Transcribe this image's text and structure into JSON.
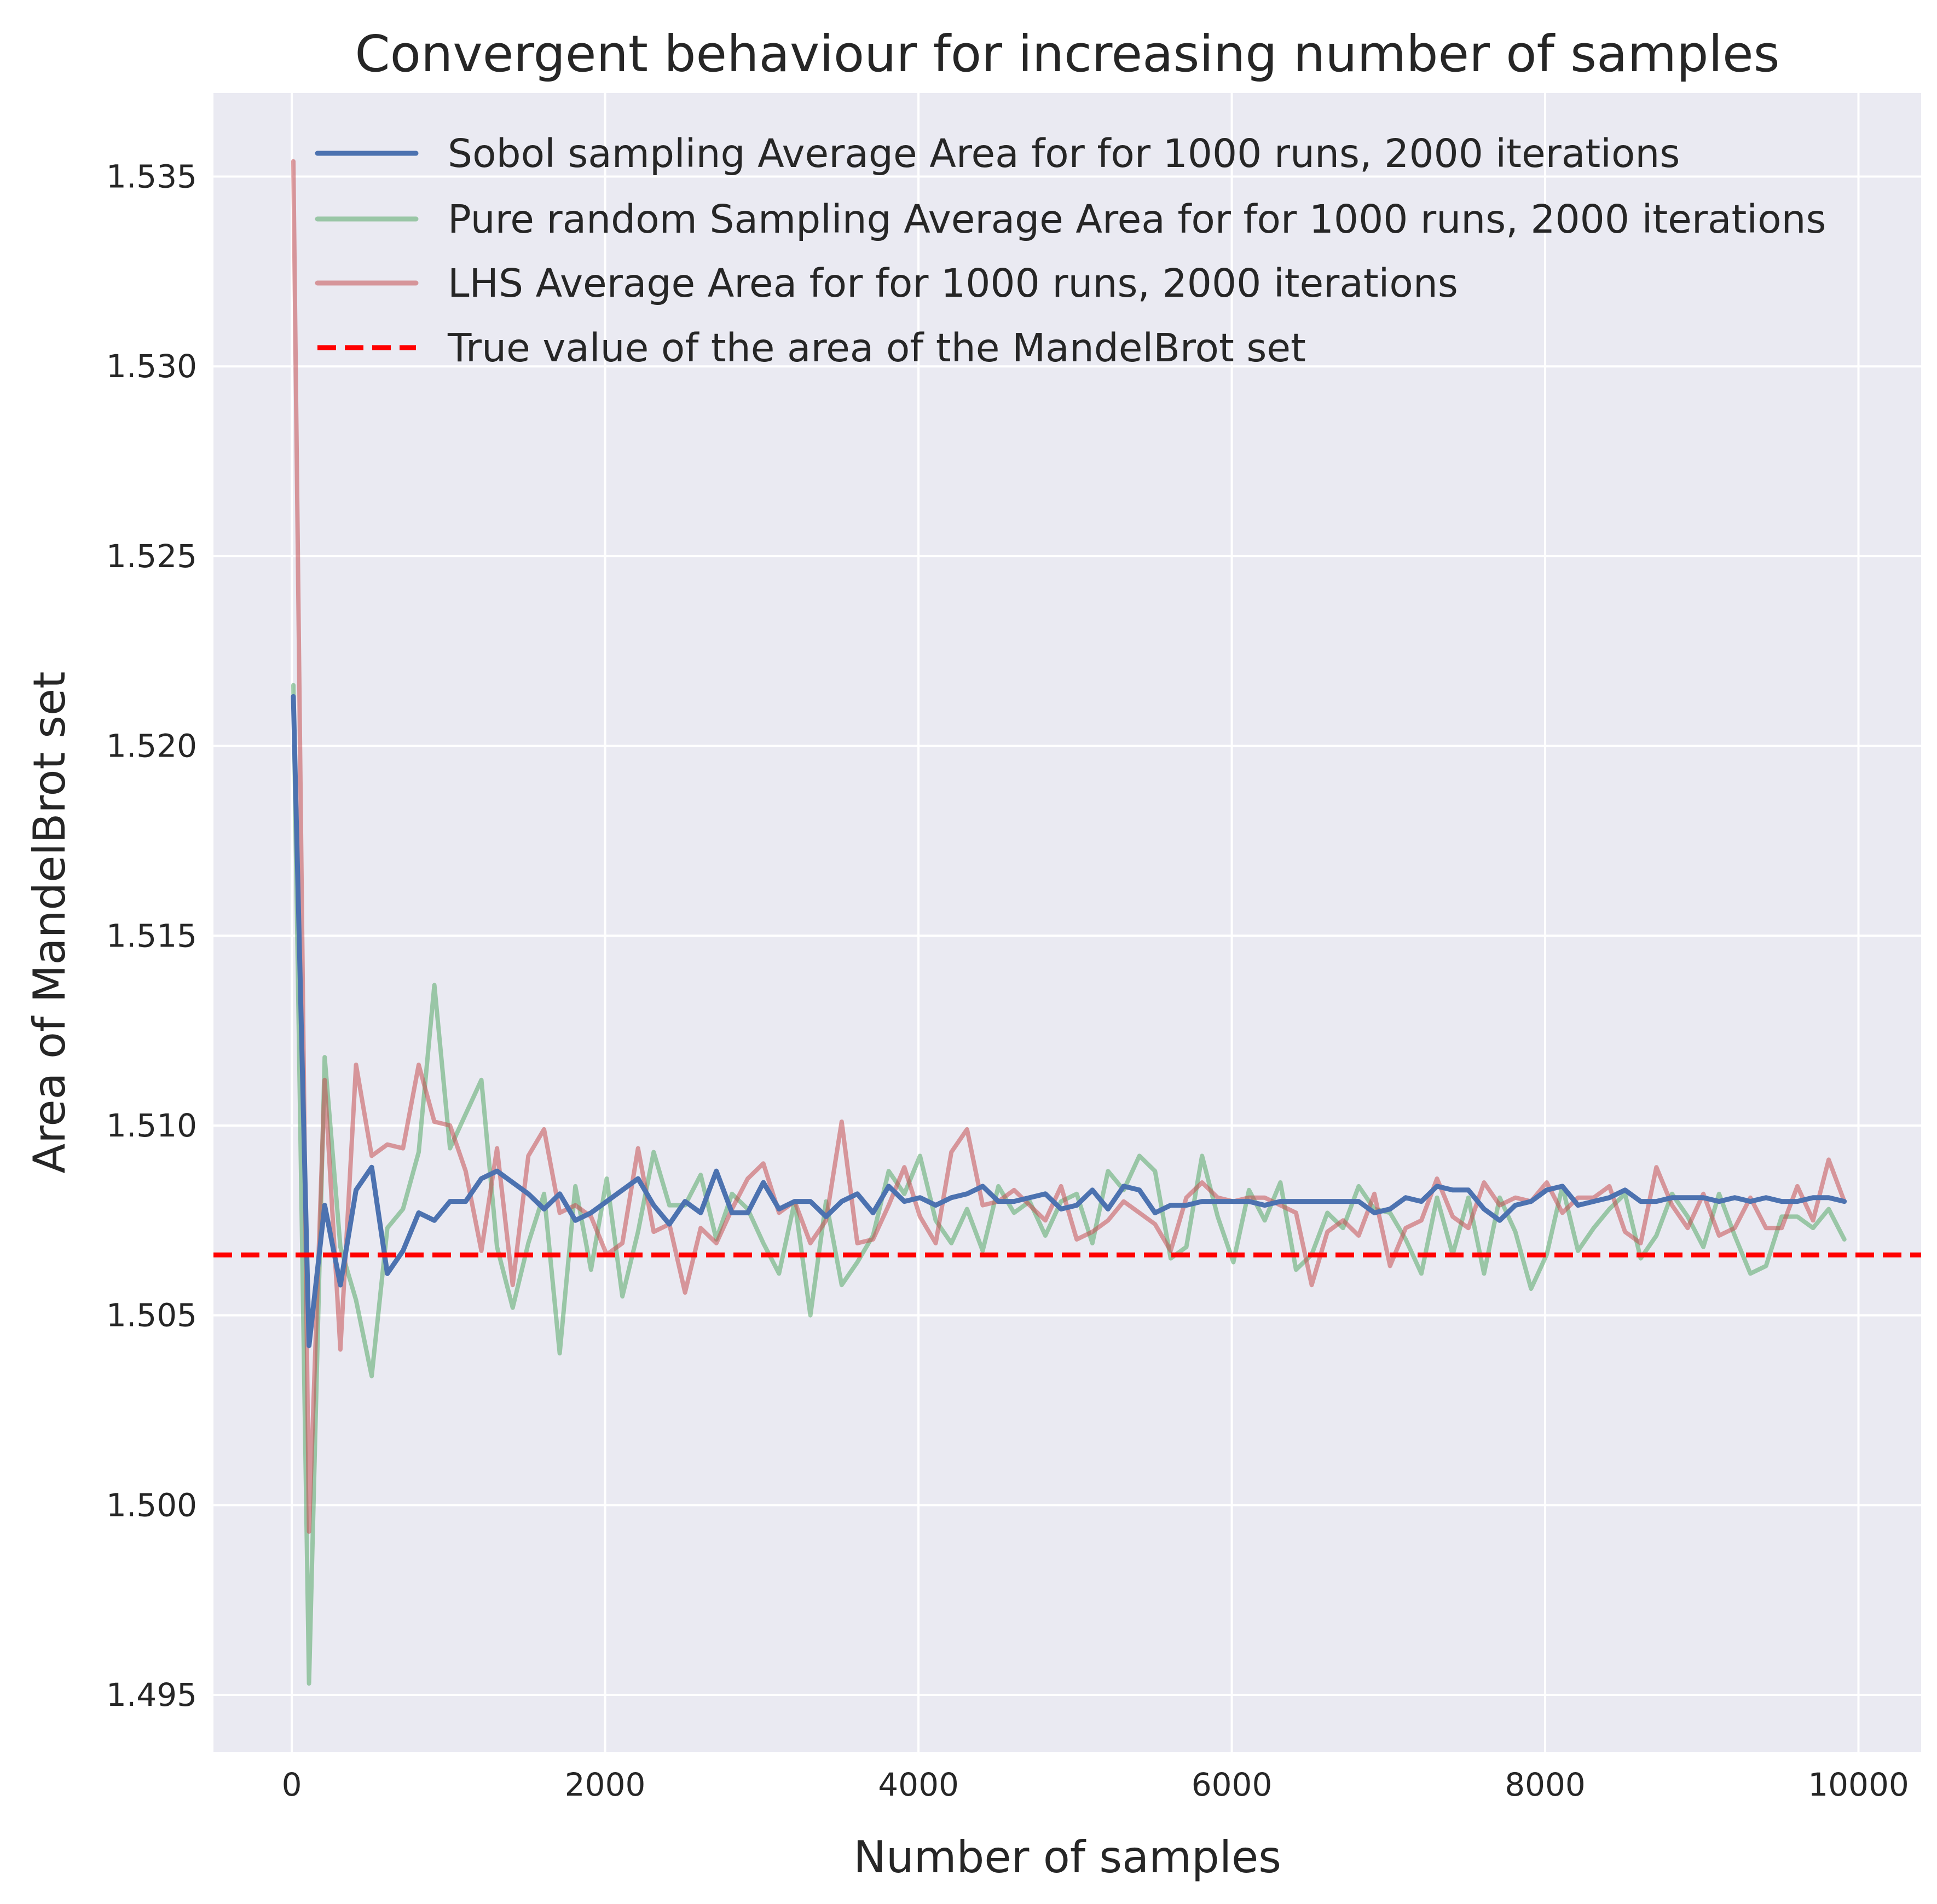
{
  "chart_data": {
    "type": "line",
    "title": "Convergent behaviour for increasing number of samples",
    "xlabel": "Number of samples",
    "ylabel": "Area of MandelBrot set",
    "xlim": [
      -500,
      10400
    ],
    "ylim": [
      1.4935,
      1.5372
    ],
    "xticks": [
      "0",
      "2000",
      "4000",
      "6000",
      "8000",
      "10000"
    ],
    "yticks": [
      "1.495",
      "1.500",
      "1.505",
      "1.510",
      "1.515",
      "1.520",
      "1.525",
      "1.530",
      "1.535"
    ],
    "grid": true,
    "legend_position": "top-left",
    "x": [
      10,
      110,
      210,
      310,
      410,
      510,
      610,
      710,
      810,
      910,
      1010,
      1110,
      1210,
      1310,
      1410,
      1510,
      1610,
      1710,
      1810,
      1910,
      2010,
      2110,
      2210,
      2310,
      2410,
      2510,
      2610,
      2710,
      2810,
      2910,
      3010,
      3110,
      3210,
      3310,
      3410,
      3510,
      3610,
      3710,
      3810,
      3910,
      4010,
      4110,
      4210,
      4310,
      4410,
      4510,
      4610,
      4710,
      4810,
      4910,
      5010,
      5110,
      5210,
      5310,
      5410,
      5510,
      5610,
      5710,
      5810,
      5910,
      6010,
      6110,
      6210,
      6310,
      6410,
      6510,
      6610,
      6710,
      6810,
      6910,
      7010,
      7110,
      7210,
      7310,
      7410,
      7510,
      7610,
      7710,
      7810,
      7910,
      8010,
      8110,
      8210,
      8310,
      8410,
      8510,
      8610,
      8710,
      8810,
      8910,
      9010,
      9110,
      9210,
      9310,
      9410,
      9510,
      9610,
      9710,
      9810,
      9910
    ],
    "series": [
      {
        "name": "Sobol sampling Average Area for for 1000 runs, 2000 iterations",
        "color": "#4c72b0",
        "style": "solid",
        "values": [
          1.5213,
          1.5042,
          1.5079,
          1.5058,
          1.5083,
          1.5089,
          1.5061,
          1.5067,
          1.5077,
          1.5075,
          1.508,
          1.508,
          1.5086,
          1.5088,
          1.5085,
          1.5082,
          1.5078,
          1.5082,
          1.5075,
          1.5077,
          1.508,
          1.5083,
          1.5086,
          1.5079,
          1.5074,
          1.508,
          1.5077,
          1.5088,
          1.5077,
          1.5077,
          1.5085,
          1.5078,
          1.508,
          1.508,
          1.5076,
          1.508,
          1.5082,
          1.5077,
          1.5084,
          1.508,
          1.5081,
          1.5079,
          1.5081,
          1.5082,
          1.5084,
          1.508,
          1.508,
          1.5081,
          1.5082,
          1.5078,
          1.5079,
          1.5083,
          1.5078,
          1.5084,
          1.5083,
          1.5077,
          1.5079,
          1.5079,
          1.508,
          1.508,
          1.508,
          1.508,
          1.5079,
          1.508,
          1.508,
          1.508,
          1.508,
          1.508,
          1.508,
          1.5077,
          1.5078,
          1.5081,
          1.508,
          1.5084,
          1.5083,
          1.5083,
          1.5078,
          1.5075,
          1.5079,
          1.508,
          1.5083,
          1.5084,
          1.5079,
          1.508,
          1.5081,
          1.5083,
          1.508,
          1.508,
          1.5081,
          1.5081,
          1.5081,
          1.508,
          1.5081,
          1.508,
          1.5081,
          1.508,
          1.508,
          1.5081,
          1.5081,
          1.508
        ]
      },
      {
        "name": "Pure random Sampling Average Area for for 1000 runs, 2000 iterations",
        "color": "#55a868",
        "style": "solid",
        "values": [
          1.5216,
          1.4953,
          1.5118,
          1.5068,
          1.5054,
          1.5034,
          1.5073,
          1.5078,
          1.5093,
          1.5137,
          1.5094,
          1.5103,
          1.5112,
          1.5068,
          1.5052,
          1.5069,
          1.5082,
          1.504,
          1.5084,
          1.5062,
          1.5086,
          1.5055,
          1.5072,
          1.5093,
          1.5079,
          1.5079,
          1.5087,
          1.507,
          1.5082,
          1.5078,
          1.5069,
          1.5061,
          1.508,
          1.505,
          1.508,
          1.5058,
          1.5064,
          1.5071,
          1.5088,
          1.5082,
          1.5092,
          1.5075,
          1.5069,
          1.5078,
          1.5067,
          1.5084,
          1.5077,
          1.508,
          1.5071,
          1.508,
          1.5082,
          1.5069,
          1.5088,
          1.5083,
          1.5092,
          1.5088,
          1.5065,
          1.5068,
          1.5092,
          1.5076,
          1.5064,
          1.5083,
          1.5075,
          1.5085,
          1.5062,
          1.5066,
          1.5077,
          1.5073,
          1.5084,
          1.5078,
          1.5077,
          1.507,
          1.5061,
          1.5081,
          1.5066,
          1.5081,
          1.5061,
          1.5081,
          1.5072,
          1.5057,
          1.5066,
          1.5084,
          1.5067,
          1.5073,
          1.5078,
          1.5082,
          1.5065,
          1.5071,
          1.5082,
          1.5076,
          1.5068,
          1.5082,
          1.5071,
          1.5061,
          1.5063,
          1.5076,
          1.5076,
          1.5073,
          1.5078,
          1.507
        ]
      },
      {
        "name": "LHS Average Area for for 1000 runs, 2000 iterations",
        "color": "#c44e52",
        "style": "solid",
        "values": [
          1.5354,
          1.4993,
          1.5112,
          1.5041,
          1.5116,
          1.5092,
          1.5095,
          1.5094,
          1.5116,
          1.5101,
          1.51,
          1.5088,
          1.5067,
          1.5094,
          1.5058,
          1.5092,
          1.5099,
          1.5077,
          1.5079,
          1.5076,
          1.5066,
          1.5069,
          1.5094,
          1.5072,
          1.5074,
          1.5056,
          1.5073,
          1.5069,
          1.5078,
          1.5086,
          1.509,
          1.5077,
          1.508,
          1.5069,
          1.5075,
          1.5101,
          1.5069,
          1.507,
          1.5079,
          1.5089,
          1.5076,
          1.5069,
          1.5093,
          1.5099,
          1.5079,
          1.508,
          1.5083,
          1.5079,
          1.5075,
          1.5084,
          1.507,
          1.5072,
          1.5075,
          1.508,
          1.5077,
          1.5074,
          1.5067,
          1.5081,
          1.5085,
          1.5081,
          1.508,
          1.5081,
          1.5081,
          1.5079,
          1.5077,
          1.5058,
          1.5072,
          1.5075,
          1.5071,
          1.5082,
          1.5063,
          1.5073,
          1.5075,
          1.5086,
          1.5076,
          1.5073,
          1.5085,
          1.5079,
          1.5081,
          1.508,
          1.5085,
          1.5077,
          1.5081,
          1.5081,
          1.5084,
          1.5072,
          1.5069,
          1.5089,
          1.5079,
          1.5073,
          1.5082,
          1.5071,
          1.5073,
          1.5081,
          1.5073,
          1.5073,
          1.5084,
          1.5075,
          1.5091,
          1.508
        ]
      }
    ],
    "reference_line": {
      "name": "True value of the area of the MandelBrot set",
      "value": 1.50659,
      "color": "#ff0000",
      "style": "dashed"
    }
  },
  "colors": {
    "plot_background": "#eaeaf2",
    "grid": "#ffffff",
    "page_background": "#ffffff"
  }
}
